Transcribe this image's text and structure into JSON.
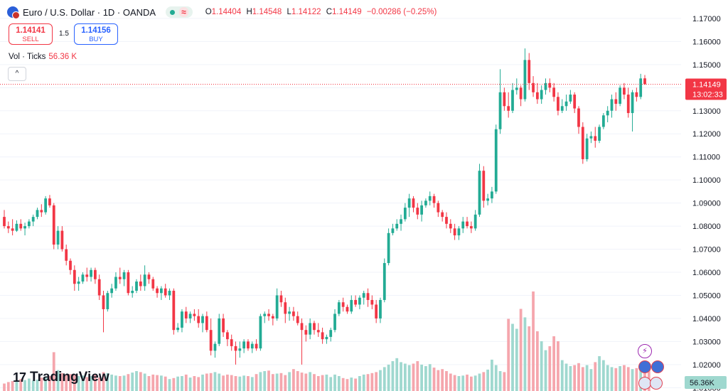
{
  "header": {
    "symbol": "Euro / U.S. Dollar · 1D · OANDA",
    "status_wave": "≈",
    "ohlc": {
      "o_label": "O",
      "o": "1.14404",
      "h_label": "H",
      "h": "1.14548",
      "l_label": "L",
      "l": "1.14122",
      "c_label": "C",
      "c": "1.14149",
      "change": "−0.00286 (−0.25%)"
    }
  },
  "trade": {
    "sell_price": "1.14141",
    "sell_label": "SELL",
    "spread": "1.5",
    "buy_price": "1.14156",
    "buy_label": "BUY"
  },
  "volume_legend": {
    "label": "Vol · Ticks",
    "value": "56.36 K"
  },
  "collapse_icon": "^",
  "branding": {
    "logo_mark": "17",
    "logo_text": "TradingView"
  },
  "colors": {
    "up": "#22ab94",
    "down": "#f23645",
    "up_vol": "#9fd8cf",
    "down_vol": "#f5a6ad",
    "grid": "#f0f3fa"
  },
  "chart_data": {
    "type": "candlestick",
    "title": "Euro / U.S. Dollar · 1D · OANDA",
    "y_axis_ticks": [
      "1.17000",
      "1.16000",
      "1.15000",
      "1.14000",
      "1.13000",
      "1.12000",
      "1.11000",
      "1.10000",
      "1.09000",
      "1.08000",
      "1.07000",
      "1.06000",
      "1.05000",
      "1.04000",
      "1.03000",
      "1.02000",
      "1.01000"
    ],
    "ylim": [
      1.00856,
      1.17275
    ],
    "last_price_label": "1.14149",
    "countdown_label": "13:02:33",
    "volume_label": "56.36K",
    "last_price": 1.14149,
    "candles": [
      {
        "o": 1.084,
        "h": 1.087,
        "l": 1.079,
        "c": 1.08
      },
      {
        "o": 1.08,
        "h": 1.082,
        "l": 1.077,
        "c": 1.079
      },
      {
        "o": 1.079,
        "h": 1.083,
        "l": 1.076,
        "c": 1.078
      },
      {
        "o": 1.078,
        "h": 1.0825,
        "l": 1.0775,
        "c": 1.081
      },
      {
        "o": 1.081,
        "h": 1.083,
        "l": 1.078,
        "c": 1.079
      },
      {
        "o": 1.079,
        "h": 1.0815,
        "l": 1.076,
        "c": 1.08
      },
      {
        "o": 1.08,
        "h": 1.083,
        "l": 1.079,
        "c": 1.082
      },
      {
        "o": 1.082,
        "h": 1.085,
        "l": 1.08,
        "c": 1.084
      },
      {
        "o": 1.084,
        "h": 1.088,
        "l": 1.083,
        "c": 1.087
      },
      {
        "o": 1.087,
        "h": 1.0895,
        "l": 1.084,
        "c": 1.086
      },
      {
        "o": 1.086,
        "h": 1.093,
        "l": 1.085,
        "c": 1.092
      },
      {
        "o": 1.092,
        "h": 1.0935,
        "l": 1.088,
        "c": 1.089
      },
      {
        "o": 1.089,
        "h": 1.09,
        "l": 1.07,
        "c": 1.072
      },
      {
        "o": 1.072,
        "h": 1.08,
        "l": 1.07,
        "c": 1.078
      },
      {
        "o": 1.078,
        "h": 1.08,
        "l": 1.069,
        "c": 1.07
      },
      {
        "o": 1.07,
        "h": 1.072,
        "l": 1.063,
        "c": 1.065
      },
      {
        "o": 1.065,
        "h": 1.066,
        "l": 1.059,
        "c": 1.061
      },
      {
        "o": 1.061,
        "h": 1.063,
        "l": 1.052,
        "c": 1.055
      },
      {
        "o": 1.055,
        "h": 1.058,
        "l": 1.052,
        "c": 1.056
      },
      {
        "o": 1.056,
        "h": 1.06,
        "l": 1.055,
        "c": 1.059
      },
      {
        "o": 1.059,
        "h": 1.062,
        "l": 1.056,
        "c": 1.058
      },
      {
        "o": 1.058,
        "h": 1.062,
        "l": 1.056,
        "c": 1.061
      },
      {
        "o": 1.061,
        "h": 1.062,
        "l": 1.055,
        "c": 1.057
      },
      {
        "o": 1.057,
        "h": 1.059,
        "l": 1.048,
        "c": 1.05
      },
      {
        "o": 1.05,
        "h": 1.052,
        "l": 1.034,
        "c": 1.044
      },
      {
        "o": 1.044,
        "h": 1.052,
        "l": 1.043,
        "c": 1.051
      },
      {
        "o": 1.051,
        "h": 1.055,
        "l": 1.049,
        "c": 1.053
      },
      {
        "o": 1.053,
        "h": 1.06,
        "l": 1.052,
        "c": 1.058
      },
      {
        "o": 1.058,
        "h": 1.062,
        "l": 1.055,
        "c": 1.057
      },
      {
        "o": 1.057,
        "h": 1.061,
        "l": 1.054,
        "c": 1.06
      },
      {
        "o": 1.06,
        "h": 1.061,
        "l": 1.05,
        "c": 1.051
      },
      {
        "o": 1.051,
        "h": 1.054,
        "l": 1.049,
        "c": 1.052
      },
      {
        "o": 1.052,
        "h": 1.057,
        "l": 1.051,
        "c": 1.056
      },
      {
        "o": 1.056,
        "h": 1.059,
        "l": 1.052,
        "c": 1.054
      },
      {
        "o": 1.054,
        "h": 1.063,
        "l": 1.052,
        "c": 1.059
      },
      {
        "o": 1.059,
        "h": 1.06,
        "l": 1.055,
        "c": 1.057
      },
      {
        "o": 1.057,
        "h": 1.058,
        "l": 1.052,
        "c": 1.053
      },
      {
        "o": 1.053,
        "h": 1.054,
        "l": 1.049,
        "c": 1.051
      },
      {
        "o": 1.051,
        "h": 1.054,
        "l": 1.048,
        "c": 1.053
      },
      {
        "o": 1.053,
        "h": 1.055,
        "l": 1.049,
        "c": 1.05
      },
      {
        "o": 1.05,
        "h": 1.053,
        "l": 1.048,
        "c": 1.052
      },
      {
        "o": 1.052,
        "h": 1.053,
        "l": 1.033,
        "c": 1.035
      },
      {
        "o": 1.035,
        "h": 1.038,
        "l": 1.034,
        "c": 1.036
      },
      {
        "o": 1.036,
        "h": 1.044,
        "l": 1.034,
        "c": 1.043
      },
      {
        "o": 1.043,
        "h": 1.045,
        "l": 1.038,
        "c": 1.04
      },
      {
        "o": 1.04,
        "h": 1.043,
        "l": 1.038,
        "c": 1.042
      },
      {
        "o": 1.042,
        "h": 1.044,
        "l": 1.039,
        "c": 1.041
      },
      {
        "o": 1.041,
        "h": 1.044,
        "l": 1.036,
        "c": 1.038
      },
      {
        "o": 1.038,
        "h": 1.042,
        "l": 1.034,
        "c": 1.041
      },
      {
        "o": 1.041,
        "h": 1.043,
        "l": 1.034,
        "c": 1.035
      },
      {
        "o": 1.035,
        "h": 1.04,
        "l": 1.024,
        "c": 1.026
      },
      {
        "o": 1.026,
        "h": 1.03,
        "l": 1.023,
        "c": 1.029
      },
      {
        "o": 1.029,
        "h": 1.042,
        "l": 1.028,
        "c": 1.04
      },
      {
        "o": 1.04,
        "h": 1.042,
        "l": 1.032,
        "c": 1.034
      },
      {
        "o": 1.034,
        "h": 1.035,
        "l": 1.028,
        "c": 1.031
      },
      {
        "o": 1.031,
        "h": 1.033,
        "l": 1.026,
        "c": 1.028
      },
      {
        "o": 1.028,
        "h": 1.03,
        "l": 1.02,
        "c": 1.026
      },
      {
        "o": 1.026,
        "h": 1.03,
        "l": 1.023,
        "c": 1.027
      },
      {
        "o": 1.027,
        "h": 1.031,
        "l": 1.025,
        "c": 1.03
      },
      {
        "o": 1.03,
        "h": 1.031,
        "l": 1.026,
        "c": 1.027
      },
      {
        "o": 1.027,
        "h": 1.03,
        "l": 1.025,
        "c": 1.029
      },
      {
        "o": 1.029,
        "h": 1.031,
        "l": 1.026,
        "c": 1.027
      },
      {
        "o": 1.027,
        "h": 1.042,
        "l": 1.026,
        "c": 1.041
      },
      {
        "o": 1.041,
        "h": 1.043,
        "l": 1.038,
        "c": 1.042
      },
      {
        "o": 1.042,
        "h": 1.044,
        "l": 1.039,
        "c": 1.041
      },
      {
        "o": 1.041,
        "h": 1.042,
        "l": 1.037,
        "c": 1.04
      },
      {
        "o": 1.04,
        "h": 1.053,
        "l": 1.039,
        "c": 1.05
      },
      {
        "o": 1.05,
        "h": 1.052,
        "l": 1.045,
        "c": 1.047
      },
      {
        "o": 1.047,
        "h": 1.049,
        "l": 1.038,
        "c": 1.042
      },
      {
        "o": 1.042,
        "h": 1.045,
        "l": 1.039,
        "c": 1.043
      },
      {
        "o": 1.043,
        "h": 1.045,
        "l": 1.039,
        "c": 1.041
      },
      {
        "o": 1.041,
        "h": 1.043,
        "l": 1.037,
        "c": 1.038
      },
      {
        "o": 1.038,
        "h": 1.04,
        "l": 1.02,
        "c": 1.035
      },
      {
        "o": 1.035,
        "h": 1.037,
        "l": 1.03,
        "c": 1.033
      },
      {
        "o": 1.033,
        "h": 1.04,
        "l": 1.031,
        "c": 1.038
      },
      {
        "o": 1.038,
        "h": 1.039,
        "l": 1.033,
        "c": 1.035
      },
      {
        "o": 1.035,
        "h": 1.038,
        "l": 1.032,
        "c": 1.034
      },
      {
        "o": 1.034,
        "h": 1.036,
        "l": 1.029,
        "c": 1.031
      },
      {
        "o": 1.031,
        "h": 1.033,
        "l": 1.029,
        "c": 1.032
      },
      {
        "o": 1.032,
        "h": 1.036,
        "l": 1.03,
        "c": 1.035
      },
      {
        "o": 1.035,
        "h": 1.044,
        "l": 1.034,
        "c": 1.042
      },
      {
        "o": 1.042,
        "h": 1.048,
        "l": 1.041,
        "c": 1.047
      },
      {
        "o": 1.047,
        "h": 1.049,
        "l": 1.043,
        "c": 1.045
      },
      {
        "o": 1.045,
        "h": 1.046,
        "l": 1.042,
        "c": 1.043
      },
      {
        "o": 1.043,
        "h": 1.05,
        "l": 1.042,
        "c": 1.048
      },
      {
        "o": 1.048,
        "h": 1.05,
        "l": 1.045,
        "c": 1.046
      },
      {
        "o": 1.046,
        "h": 1.05,
        "l": 1.044,
        "c": 1.049
      },
      {
        "o": 1.049,
        "h": 1.052,
        "l": 1.046,
        "c": 1.051
      },
      {
        "o": 1.051,
        "h": 1.053,
        "l": 1.045,
        "c": 1.048
      },
      {
        "o": 1.048,
        "h": 1.05,
        "l": 1.044,
        "c": 1.046
      },
      {
        "o": 1.046,
        "h": 1.048,
        "l": 1.038,
        "c": 1.04
      },
      {
        "o": 1.04,
        "h": 1.049,
        "l": 1.038,
        "c": 1.048
      },
      {
        "o": 1.048,
        "h": 1.066,
        "l": 1.047,
        "c": 1.064
      },
      {
        "o": 1.064,
        "h": 1.079,
        "l": 1.063,
        "c": 1.077
      },
      {
        "o": 1.077,
        "h": 1.081,
        "l": 1.076,
        "c": 1.079
      },
      {
        "o": 1.079,
        "h": 1.083,
        "l": 1.078,
        "c": 1.081
      },
      {
        "o": 1.081,
        "h": 1.085,
        "l": 1.078,
        "c": 1.083
      },
      {
        "o": 1.083,
        "h": 1.09,
        "l": 1.082,
        "c": 1.088
      },
      {
        "o": 1.088,
        "h": 1.094,
        "l": 1.084,
        "c": 1.092
      },
      {
        "o": 1.092,
        "h": 1.093,
        "l": 1.086,
        "c": 1.088
      },
      {
        "o": 1.088,
        "h": 1.09,
        "l": 1.083,
        "c": 1.085
      },
      {
        "o": 1.085,
        "h": 1.091,
        "l": 1.082,
        "c": 1.089
      },
      {
        "o": 1.089,
        "h": 1.092,
        "l": 1.088,
        "c": 1.091
      },
      {
        "o": 1.091,
        "h": 1.095,
        "l": 1.089,
        "c": 1.093
      },
      {
        "o": 1.093,
        "h": 1.094,
        "l": 1.088,
        "c": 1.09
      },
      {
        "o": 1.09,
        "h": 1.091,
        "l": 1.084,
        "c": 1.086
      },
      {
        "o": 1.086,
        "h": 1.087,
        "l": 1.082,
        "c": 1.084
      },
      {
        "o": 1.084,
        "h": 1.086,
        "l": 1.079,
        "c": 1.081
      },
      {
        "o": 1.081,
        "h": 1.083,
        "l": 1.077,
        "c": 1.079
      },
      {
        "o": 1.079,
        "h": 1.081,
        "l": 1.074,
        "c": 1.076
      },
      {
        "o": 1.076,
        "h": 1.08,
        "l": 1.074,
        "c": 1.079
      },
      {
        "o": 1.079,
        "h": 1.084,
        "l": 1.077,
        "c": 1.082
      },
      {
        "o": 1.082,
        "h": 1.084,
        "l": 1.079,
        "c": 1.08
      },
      {
        "o": 1.08,
        "h": 1.082,
        "l": 1.077,
        "c": 1.079
      },
      {
        "o": 1.079,
        "h": 1.087,
        "l": 1.078,
        "c": 1.085
      },
      {
        "o": 1.085,
        "h": 1.107,
        "l": 1.084,
        "c": 1.104
      },
      {
        "o": 1.104,
        "h": 1.106,
        "l": 1.088,
        "c": 1.091
      },
      {
        "o": 1.091,
        "h": 1.094,
        "l": 1.089,
        "c": 1.092
      },
      {
        "o": 1.092,
        "h": 1.097,
        "l": 1.09,
        "c": 1.095
      },
      {
        "o": 1.095,
        "h": 1.124,
        "l": 1.094,
        "c": 1.122
      },
      {
        "o": 1.122,
        "h": 1.148,
        "l": 1.12,
        "c": 1.138
      },
      {
        "o": 1.138,
        "h": 1.14,
        "l": 1.13,
        "c": 1.132
      },
      {
        "o": 1.132,
        "h": 1.138,
        "l": 1.127,
        "c": 1.13
      },
      {
        "o": 1.13,
        "h": 1.142,
        "l": 1.129,
        "c": 1.139
      },
      {
        "o": 1.139,
        "h": 1.144,
        "l": 1.137,
        "c": 1.14
      },
      {
        "o": 1.14,
        "h": 1.141,
        "l": 1.132,
        "c": 1.135
      },
      {
        "o": 1.135,
        "h": 1.157,
        "l": 1.134,
        "c": 1.152
      },
      {
        "o": 1.152,
        "h": 1.155,
        "l": 1.139,
        "c": 1.142
      },
      {
        "o": 1.142,
        "h": 1.145,
        "l": 1.136,
        "c": 1.138
      },
      {
        "o": 1.138,
        "h": 1.142,
        "l": 1.133,
        "c": 1.135
      },
      {
        "o": 1.135,
        "h": 1.141,
        "l": 1.133,
        "c": 1.139
      },
      {
        "o": 1.139,
        "h": 1.144,
        "l": 1.137,
        "c": 1.142
      },
      {
        "o": 1.142,
        "h": 1.144,
        "l": 1.138,
        "c": 1.14
      },
      {
        "o": 1.14,
        "h": 1.142,
        "l": 1.134,
        "c": 1.136
      },
      {
        "o": 1.136,
        "h": 1.138,
        "l": 1.128,
        "c": 1.13
      },
      {
        "o": 1.13,
        "h": 1.135,
        "l": 1.129,
        "c": 1.132
      },
      {
        "o": 1.132,
        "h": 1.137,
        "l": 1.13,
        "c": 1.134
      },
      {
        "o": 1.134,
        "h": 1.139,
        "l": 1.133,
        "c": 1.137
      },
      {
        "o": 1.137,
        "h": 1.138,
        "l": 1.129,
        "c": 1.131
      },
      {
        "o": 1.131,
        "h": 1.132,
        "l": 1.12,
        "c": 1.123
      },
      {
        "o": 1.123,
        "h": 1.125,
        "l": 1.107,
        "c": 1.109
      },
      {
        "o": 1.109,
        "h": 1.12,
        "l": 1.108,
        "c": 1.118
      },
      {
        "o": 1.118,
        "h": 1.121,
        "l": 1.116,
        "c": 1.119
      },
      {
        "o": 1.119,
        "h": 1.123,
        "l": 1.114,
        "c": 1.117
      },
      {
        "o": 1.117,
        "h": 1.124,
        "l": 1.116,
        "c": 1.123
      },
      {
        "o": 1.123,
        "h": 1.129,
        "l": 1.122,
        "c": 1.128
      },
      {
        "o": 1.128,
        "h": 1.132,
        "l": 1.125,
        "c": 1.13
      },
      {
        "o": 1.13,
        "h": 1.137,
        "l": 1.127,
        "c": 1.135
      },
      {
        "o": 1.135,
        "h": 1.138,
        "l": 1.13,
        "c": 1.133
      },
      {
        "o": 1.133,
        "h": 1.141,
        "l": 1.132,
        "c": 1.14
      },
      {
        "o": 1.14,
        "h": 1.142,
        "l": 1.135,
        "c": 1.137
      },
      {
        "o": 1.137,
        "h": 1.14,
        "l": 1.127,
        "c": 1.129
      },
      {
        "o": 1.129,
        "h": 1.139,
        "l": 1.121,
        "c": 1.138
      },
      {
        "o": 1.138,
        "h": 1.14,
        "l": 1.134,
        "c": 1.136
      },
      {
        "o": 1.136,
        "h": 1.146,
        "l": 1.135,
        "c": 1.144
      },
      {
        "o": 1.14404,
        "h": 1.14548,
        "l": 1.14122,
        "c": 1.14149
      }
    ],
    "volume": [
      0.15,
      0.18,
      0.2,
      0.22,
      0.24,
      0.22,
      0.25,
      0.21,
      0.23,
      0.27,
      0.29,
      0.3,
      0.78,
      0.42,
      0.36,
      0.32,
      0.34,
      0.33,
      0.3,
      0.31,
      0.28,
      0.3,
      0.33,
      0.27,
      0.38,
      0.36,
      0.33,
      0.31,
      0.3,
      0.31,
      0.34,
      0.37,
      0.4,
      0.38,
      0.35,
      0.3,
      0.33,
      0.32,
      0.31,
      0.29,
      0.24,
      0.26,
      0.29,
      0.3,
      0.33,
      0.27,
      0.3,
      0.28,
      0.33,
      0.35,
      0.36,
      0.38,
      0.35,
      0.31,
      0.33,
      0.32,
      0.3,
      0.29,
      0.31,
      0.3,
      0.28,
      0.34,
      0.38,
      0.4,
      0.41,
      0.34,
      0.35,
      0.36,
      0.32,
      0.38,
      0.44,
      0.4,
      0.37,
      0.35,
      0.38,
      0.34,
      0.3,
      0.32,
      0.33,
      0.28,
      0.33,
      0.3,
      0.26,
      0.24,
      0.27,
      0.25,
      0.3,
      0.33,
      0.34,
      0.36,
      0.38,
      0.42,
      0.48,
      0.53,
      0.6,
      0.66,
      0.58,
      0.55,
      0.52,
      0.55,
      0.6,
      0.53,
      0.5,
      0.54,
      0.47,
      0.42,
      0.44,
      0.4,
      0.35,
      0.32,
      0.3,
      0.31,
      0.33,
      0.29,
      0.31,
      0.35,
      0.38,
      0.43,
      0.63,
      0.52,
      0.4,
      0.38,
      1.45,
      1.35,
      1.25,
      1.65,
      1.48,
      1.3,
      2.0,
      1.2,
      1.0,
      0.82,
      0.9,
      1.1,
      1.0,
      0.62,
      0.55,
      0.5,
      0.52,
      0.56,
      0.48,
      0.52,
      0.44,
      0.58,
      0.7,
      0.62,
      0.52,
      0.48,
      0.46,
      0.5,
      0.52,
      0.48,
      0.44,
      0.46,
      0.42,
      0.43,
      0.45
    ]
  }
}
